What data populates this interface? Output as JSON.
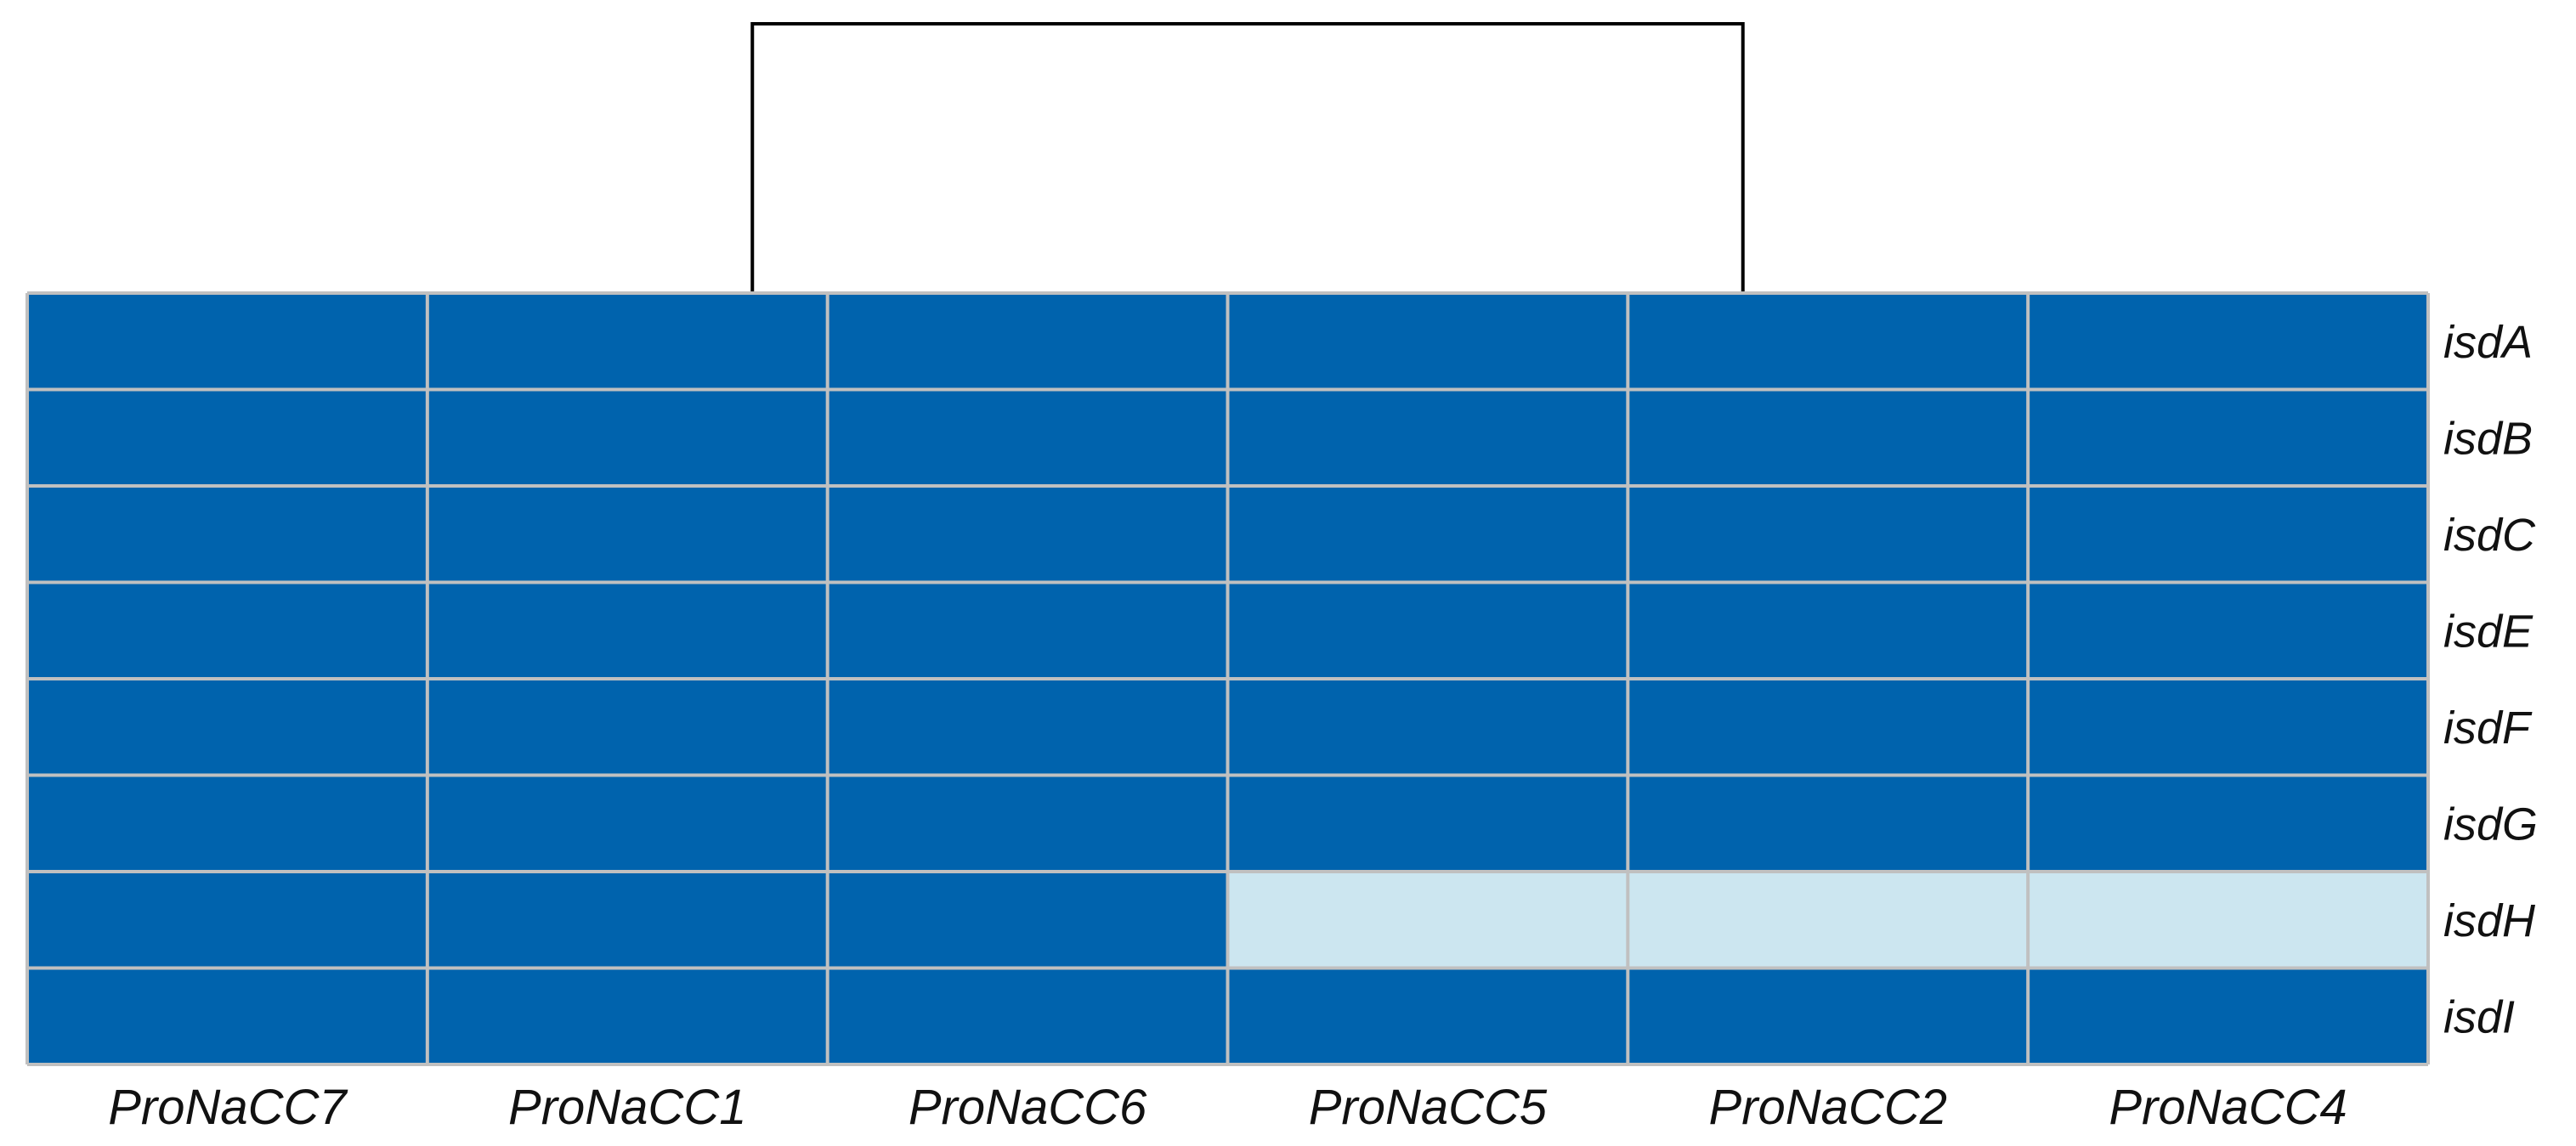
{
  "chart_data": {
    "type": "heatmap",
    "title": "",
    "xlabel": "",
    "ylabel": "",
    "columns": [
      "ProNaCC7",
      "ProNaCC1",
      "ProNaCC6",
      "ProNaCC5",
      "ProNaCC2",
      "ProNaCC4"
    ],
    "rows": [
      "isdA",
      "isdB",
      "isdC",
      "isdE",
      "isdF",
      "isdG",
      "isdH",
      "isdI"
    ],
    "values": [
      [
        1,
        1,
        1,
        1,
        1,
        1
      ],
      [
        1,
        1,
        1,
        1,
        1,
        1
      ],
      [
        1,
        1,
        1,
        1,
        1,
        1
      ],
      [
        1,
        1,
        1,
        1,
        1,
        1
      ],
      [
        1,
        1,
        1,
        1,
        1,
        1
      ],
      [
        1,
        1,
        1,
        1,
        1,
        1
      ],
      [
        1,
        1,
        1,
        0,
        0,
        0
      ],
      [
        1,
        1,
        1,
        1,
        1,
        1
      ]
    ],
    "color_present": "#0063ad",
    "color_absent": "#cce6f0",
    "grid_color": "#c0c0c0",
    "dendrogram": {
      "orientation": "top",
      "clusters": [
        {
          "members": [
            "ProNaCC7",
            "ProNaCC1",
            "ProNaCC6"
          ]
        },
        {
          "members": [
            "ProNaCC5",
            "ProNaCC2",
            "ProNaCC4"
          ]
        }
      ]
    },
    "legend": "none"
  }
}
